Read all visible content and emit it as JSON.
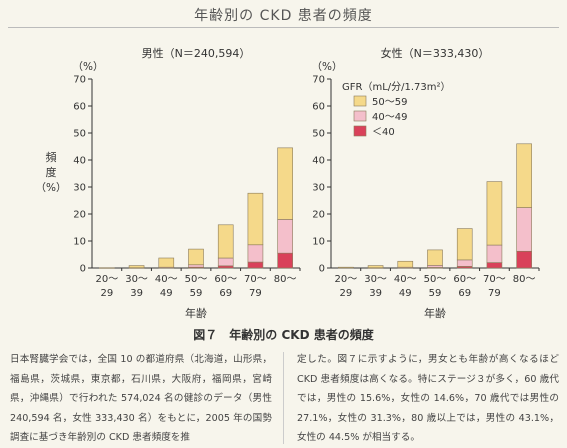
{
  "header": {
    "title": "年齢別の CKD 患者の頻度"
  },
  "caption": "図７　年齢別の CKD 患者の頻度",
  "body": {
    "left": "日本腎臓学会では，全国 10 の都道府県（北海道，山形県，福島県，茨城県，東京都，石川県，大阪府，福岡県，宮崎県，沖縄県）で行われた 574,024 名の健診のデータ（男性 240,594 名，女性 333,430 名）をもとに，2005 年の国勢調査に基づき年齢別の CKD 患者頻度を推",
    "right": "定した。図７に示すように，男女とも年齢が高くなるほど CKD 患者頻度は高くなる。特にステージ３が多く，60 歳代では，男性の 15.6%，女性の 14.6%，70 歳代では男性の 27.1%，女性の 31.3%，80 歳以上では，男性の 43.1%，女性の 44.5% が相当する。"
  },
  "colors": {
    "gfr_50_59": "#f5d98a",
    "gfr_40_49": "#f4bfcb",
    "gfr_lt40": "#d9415a",
    "stroke": "#8a7a5a",
    "axis": "#333333"
  },
  "chart_data": [
    {
      "type": "bar",
      "stacked": true,
      "title": "男性（N＝240,594）",
      "unit_label": "（%）",
      "ylabel": "頻度（%）",
      "xlabel": "年齢",
      "ylim": [
        0,
        70
      ],
      "yticks": [
        0,
        10,
        20,
        30,
        40,
        50,
        60,
        70
      ],
      "categories": [
        [
          "20〜",
          "29"
        ],
        [
          "30〜",
          "39"
        ],
        [
          "40〜",
          "49"
        ],
        [
          "50〜",
          "59"
        ],
        [
          "60〜",
          "69"
        ],
        [
          "70〜",
          "79"
        ],
        [
          "80〜",
          ""
        ]
      ],
      "series": [
        {
          "name": "＜40",
          "color_key": "gfr_lt40",
          "values": [
            0,
            0,
            0,
            0.3,
            0.8,
            2.2,
            5.5
          ]
        },
        {
          "name": "40〜49",
          "color_key": "gfr_40_49",
          "values": [
            0,
            0.1,
            0.3,
            0.9,
            2.9,
            6.4,
            12.5
          ]
        },
        {
          "name": "50〜59",
          "color_key": "gfr_50_59",
          "values": [
            0.1,
            0.8,
            3.4,
            5.8,
            12.3,
            19.1,
            26.5
          ]
        }
      ]
    },
    {
      "type": "bar",
      "stacked": true,
      "title": "女性（N＝333,430）",
      "unit_label": "（%）",
      "xlabel": "年齢",
      "ylim": [
        0,
        70
      ],
      "yticks": [
        0,
        10,
        20,
        30,
        40,
        50,
        60,
        70
      ],
      "legend_title": "GFR（mL/分/1.73m²）",
      "legend_position": "top-left",
      "categories": [
        [
          "20〜",
          "29"
        ],
        [
          "30〜",
          "39"
        ],
        [
          "40〜",
          "49"
        ],
        [
          "50〜",
          "59"
        ],
        [
          "60〜",
          "69"
        ],
        [
          "70〜",
          "79"
        ],
        [
          "80〜",
          ""
        ]
      ],
      "series": [
        {
          "name": "＜40",
          "color_key": "gfr_lt40",
          "values": [
            0,
            0,
            0,
            0.2,
            0.6,
            2.0,
            6.2
          ]
        },
        {
          "name": "40〜49",
          "color_key": "gfr_40_49",
          "values": [
            0,
            0.1,
            0.3,
            0.8,
            2.4,
            6.5,
            16.2
          ]
        },
        {
          "name": "50〜59",
          "color_key": "gfr_50_59",
          "values": [
            0.3,
            0.8,
            2.2,
            5.7,
            11.6,
            23.5,
            23.6
          ]
        }
      ]
    }
  ]
}
